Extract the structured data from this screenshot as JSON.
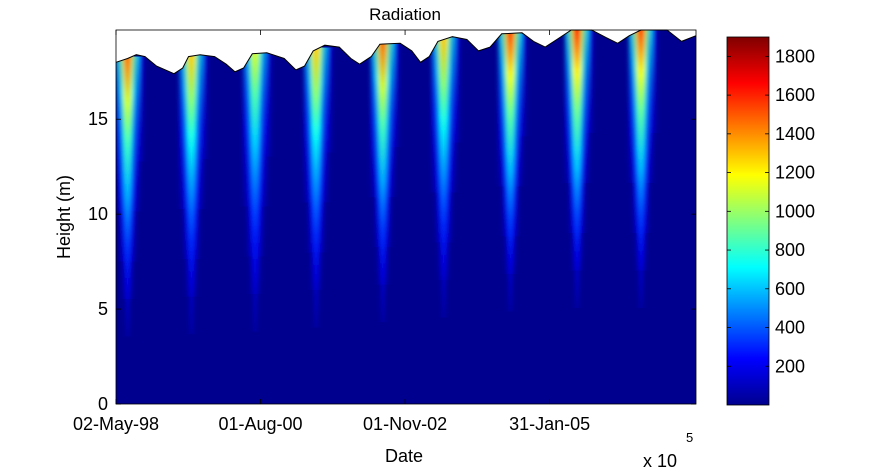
{
  "chart_data": {
    "type": "heatmap",
    "title": "Radiation",
    "xlabel": "Date",
    "ylabel": "Height (m)",
    "x_exponent_label": "x 10",
    "x_exponent_power": "5",
    "xtick_labels": [
      "02-May-98",
      "01-Aug-00",
      "01-Nov-02",
      "31-Jan-05"
    ],
    "ytick_values": [
      0,
      5,
      10,
      15
    ],
    "ylim": [
      0,
      19.7
    ],
    "colorbar": {
      "ticks": [
        200,
        400,
        600,
        800,
        1000,
        1200,
        1400,
        1600,
        1800
      ],
      "range": [
        0,
        1900
      ]
    },
    "surface_profile": [
      [
        0.0,
        18.0
      ],
      [
        0.02,
        18.2
      ],
      [
        0.035,
        18.4
      ],
      [
        0.05,
        18.3
      ],
      [
        0.07,
        17.8
      ],
      [
        0.1,
        17.4
      ],
      [
        0.115,
        17.7
      ],
      [
        0.125,
        18.3
      ],
      [
        0.145,
        18.4
      ],
      [
        0.17,
        18.3
      ],
      [
        0.19,
        17.9
      ],
      [
        0.205,
        17.5
      ],
      [
        0.22,
        17.7
      ],
      [
        0.235,
        18.45
      ],
      [
        0.26,
        18.5
      ],
      [
        0.29,
        18.2
      ],
      [
        0.31,
        17.6
      ],
      [
        0.325,
        17.8
      ],
      [
        0.34,
        18.6
      ],
      [
        0.36,
        18.9
      ],
      [
        0.385,
        18.8
      ],
      [
        0.405,
        18.2
      ],
      [
        0.42,
        17.9
      ],
      [
        0.44,
        18.3
      ],
      [
        0.455,
        18.95
      ],
      [
        0.49,
        19.0
      ],
      [
        0.51,
        18.6
      ],
      [
        0.525,
        18.0
      ],
      [
        0.54,
        18.3
      ],
      [
        0.555,
        19.1
      ],
      [
        0.58,
        19.35
      ],
      [
        0.605,
        19.2
      ],
      [
        0.625,
        18.6
      ],
      [
        0.645,
        18.8
      ],
      [
        0.665,
        19.5
      ],
      [
        0.7,
        19.55
      ],
      [
        0.72,
        19.1
      ],
      [
        0.74,
        18.8
      ],
      [
        0.76,
        19.2
      ],
      [
        0.785,
        19.7
      ],
      [
        0.82,
        19.7
      ],
      [
        0.845,
        19.3
      ],
      [
        0.865,
        19.0
      ],
      [
        0.885,
        19.4
      ],
      [
        0.905,
        19.7
      ],
      [
        0.95,
        19.7
      ],
      [
        0.975,
        19.1
      ],
      [
        1.0,
        19.4
      ]
    ],
    "radiation_peaks": [
      {
        "x": 0.02,
        "max": 1700
      },
      {
        "x": 0.13,
        "max": 1500
      },
      {
        "x": 0.24,
        "max": 1300
      },
      {
        "x": 0.345,
        "max": 1500
      },
      {
        "x": 0.46,
        "max": 1700
      },
      {
        "x": 0.565,
        "max": 1500
      },
      {
        "x": 0.68,
        "max": 1800
      },
      {
        "x": 0.795,
        "max": 1850
      },
      {
        "x": 0.905,
        "max": 1800
      }
    ]
  }
}
